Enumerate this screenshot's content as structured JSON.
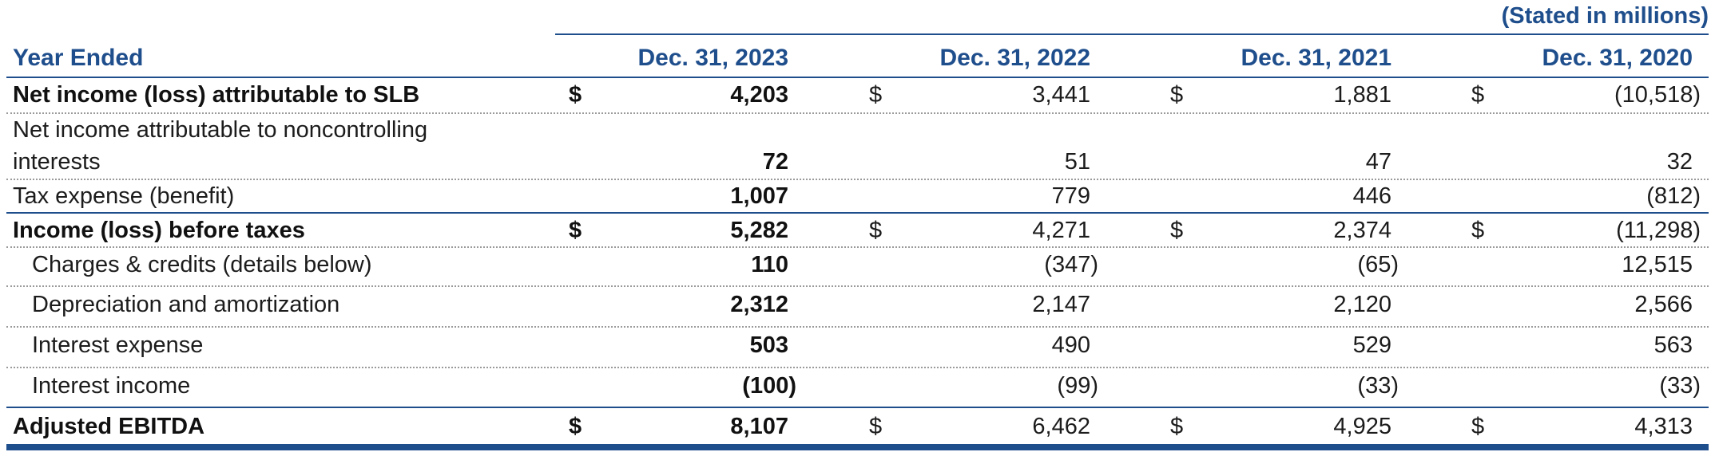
{
  "units_note": "(Stated in millions)",
  "header": {
    "label": "Year Ended",
    "columns": [
      "Dec. 31, 2023",
      "Dec. 31, 2022",
      "Dec. 31, 2021",
      "Dec. 31, 2020"
    ]
  },
  "rows": [
    {
      "label": "Net income (loss) attributable to SLB",
      "bold": true,
      "dollar": true,
      "values": [
        "4,203",
        "3,441",
        "1,881",
        "(10,518)"
      ]
    },
    {
      "label": "Net income attributable to noncontrolling",
      "label2": "interests",
      "bold": false,
      "dollar": false,
      "values": [
        "72",
        "51",
        "47",
        "32"
      ]
    },
    {
      "label": "Tax expense (benefit)",
      "bold": false,
      "dollar": false,
      "values": [
        "1,007",
        "779",
        "446",
        "(812)"
      ]
    },
    {
      "label": "Income (loss) before taxes",
      "bold": true,
      "dollar": true,
      "values": [
        "5,282",
        "4,271",
        "2,374",
        "(11,298)"
      ]
    },
    {
      "label": "Charges & credits (details below)",
      "bold": false,
      "dollar": false,
      "values": [
        "110",
        "(347)",
        "(65)",
        "12,515"
      ]
    },
    {
      "label": "Depreciation and amortization",
      "bold": false,
      "dollar": false,
      "values": [
        "2,312",
        "2,147",
        "2,120",
        "2,566"
      ]
    },
    {
      "label": "Interest expense",
      "bold": false,
      "dollar": false,
      "values": [
        "503",
        "490",
        "529",
        "563"
      ]
    },
    {
      "label": "Interest income",
      "bold": false,
      "dollar": false,
      "values": [
        "(100)",
        "(99)",
        "(33)",
        "(33)"
      ]
    },
    {
      "label": "Adjusted EBITDA",
      "bold": true,
      "dollar": true,
      "values": [
        "8,107",
        "6,462",
        "4,925",
        "4,313"
      ]
    }
  ],
  "dollar_sign": "$",
  "colors": {
    "accent": "#1f4e8c",
    "text": "#1c1c1c",
    "dotted_rule": "#9a9a9a"
  }
}
